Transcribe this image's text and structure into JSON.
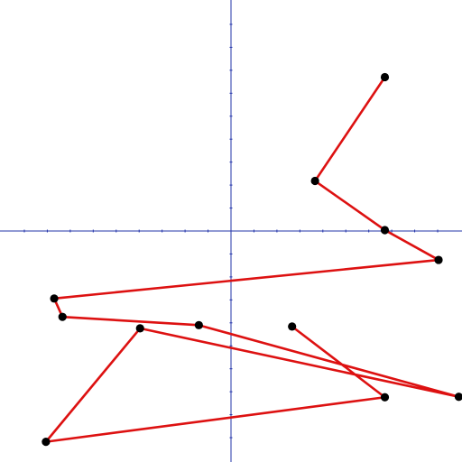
{
  "chart_data": {
    "type": "line",
    "title": "",
    "xlabel": "",
    "ylabel": "",
    "xlim": [
      -5.03,
      5.03
    ],
    "ylim": [
      -5.03,
      5.03
    ],
    "x_ticks": [
      -4.5,
      -4,
      -3.5,
      -3,
      -2.5,
      -2,
      -1.5,
      -1,
      -0.5,
      0.5,
      1,
      1.5,
      2,
      2.5,
      3,
      3.5,
      4,
      4.5
    ],
    "y_ticks": [
      -4.5,
      -4,
      -3.5,
      -3,
      -2.5,
      -2,
      -1.5,
      -1,
      -0.5,
      0.5,
      1,
      1.5,
      2,
      2.5,
      3,
      3.5,
      4,
      4.5
    ],
    "grid": false,
    "series": [
      {
        "x": [
          1.33,
          3.35,
          -4.03,
          -1.98,
          4.96,
          -0.7,
          -3.67,
          -3.85,
          4.52,
          3.35,
          1.83,
          3.35
        ],
        "y": [
          -2.08,
          -3.62,
          -4.59,
          -2.12,
          -3.61,
          -2.05,
          -1.87,
          -1.47,
          -0.63,
          0.02,
          1.09,
          3.35
        ],
        "line_color": "#dd1111",
        "marker_color": "#000000"
      }
    ]
  }
}
